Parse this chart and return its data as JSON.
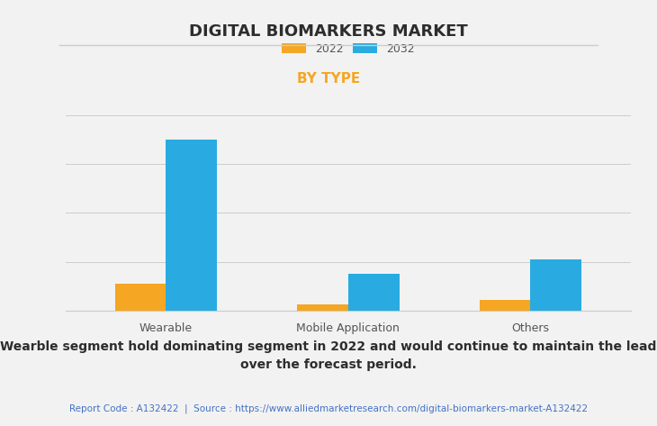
{
  "title": "DIGITAL BIOMARKERS MARKET",
  "subtitle": "BY TYPE",
  "categories": [
    "Wearable",
    "Mobile Application",
    "Others"
  ],
  "series": [
    {
      "label": "2022",
      "color": "#F5A623",
      "values": [
        0.55,
        0.13,
        0.22
      ]
    },
    {
      "label": "2032",
      "color": "#29ABE2",
      "values": [
        3.5,
        0.75,
        1.05
      ]
    }
  ],
  "ylim": [
    0,
    4.0
  ],
  "bar_width": 0.28,
  "background_color": "#F2F2F2",
  "title_color": "#2D2D2D",
  "subtitle_color": "#F5A623",
  "grid_color": "#CCCCCC",
  "annotation_text": "Wearble segment hold dominating segment in 2022 and would continue to maintain the lead\nover the forecast period.",
  "footer_text": "Report Code : A132422  |  Source : https://www.alliedmarketresearch.com/digital-biomarkers-market-A132422",
  "footer_color": "#4472C4",
  "annotation_color": "#2D2D2D",
  "title_fontsize": 13,
  "subtitle_fontsize": 11,
  "tick_fontsize": 9,
  "legend_fontsize": 9,
  "annotation_fontsize": 10,
  "footer_fontsize": 7.5
}
